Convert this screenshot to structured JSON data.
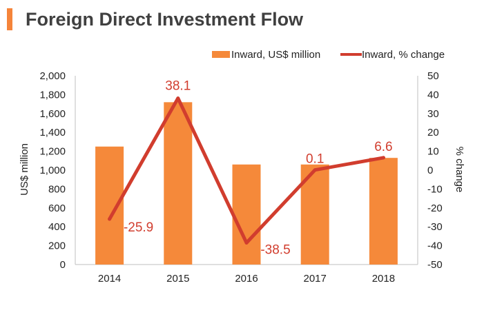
{
  "page": {
    "title": "Foreign Direct Investment Flow",
    "accent_color": "#f5843a"
  },
  "chart_data": {
    "type": "bar",
    "categories": [
      "2014",
      "2015",
      "2016",
      "2017",
      "2018"
    ],
    "series": [
      {
        "name": "Inward, US$ million",
        "type": "bar",
        "axis": "left",
        "color": "#f5893a",
        "values": [
          1250,
          1720,
          1060,
          1060,
          1130
        ]
      },
      {
        "name": "Inward, % change",
        "type": "line",
        "axis": "right",
        "color": "#d13d2e",
        "values": [
          -25.9,
          38.1,
          -38.5,
          0.1,
          6.6
        ],
        "labels": [
          "-25.9",
          "38.1",
          "-38.5",
          "0.1",
          "6.6"
        ]
      }
    ],
    "ylabel": "US$ million",
    "y2label": "% change",
    "ylim": [
      0,
      2000
    ],
    "y2lim": [
      -50,
      50
    ],
    "yticks": [
      "0",
      "200",
      "400",
      "600",
      "800",
      "1,000",
      "1,200",
      "1,400",
      "1,600",
      "1,800",
      "2,000"
    ],
    "y2ticks": [
      "-50",
      "-40",
      "-30",
      "-20",
      "-10",
      "0",
      "10",
      "20",
      "30",
      "40",
      "50"
    ],
    "grid": false,
    "legend_position": "top-right"
  }
}
